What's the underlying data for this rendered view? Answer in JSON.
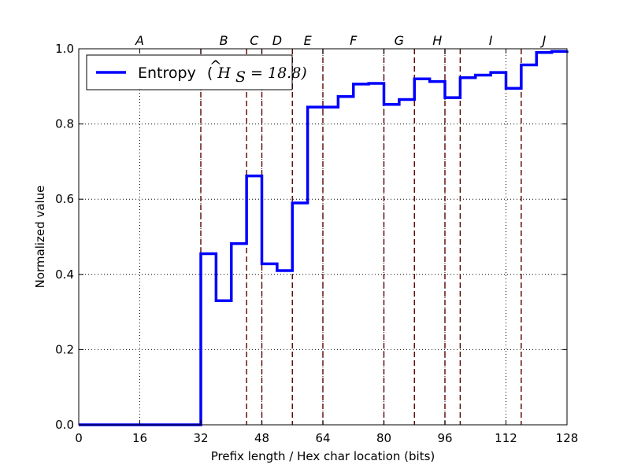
{
  "chart_data": {
    "type": "line",
    "step": true,
    "xlabel": "Prefix length / Hex char location (bits)",
    "ylabel": "Normalized value",
    "xlim": [
      0,
      128
    ],
    "ylim": [
      0,
      1.0
    ],
    "x_ticks": [
      0,
      16,
      32,
      48,
      64,
      80,
      96,
      112,
      128
    ],
    "y_ticks": [
      0.0,
      0.2,
      0.4,
      0.6,
      0.8,
      1.0
    ],
    "y_tick_labels": [
      "0.0",
      "0.2",
      "0.4",
      "0.6",
      "0.8",
      "1.0"
    ],
    "grid": true,
    "legend_position": "top-left",
    "series": [
      {
        "name": "Entropy",
        "legend_math": "(Ĥ_S = 18.8)",
        "legend_prefix": "(",
        "legend_H": "H",
        "legend_hat": "^",
        "legend_sub": "S",
        "legend_eq": " = 18.8)",
        "color": "#0000ff",
        "x": [
          0,
          4,
          8,
          12,
          16,
          20,
          24,
          28,
          32,
          36,
          40,
          44,
          48,
          52,
          56,
          60,
          64,
          68,
          72,
          76,
          80,
          84,
          88,
          92,
          96,
          100,
          104,
          108,
          112,
          116,
          120,
          124,
          128
        ],
        "values": [
          0,
          0,
          0,
          0,
          0,
          0,
          0,
          0,
          0.455,
          0.33,
          0.482,
          0.662,
          0.428,
          0.41,
          0.59,
          0.845,
          0.845,
          0.873,
          0.906,
          0.908,
          0.852,
          0.865,
          0.92,
          0.913,
          0.87,
          0.923,
          0.93,
          0.937,
          0.895,
          0.957,
          0.99,
          0.993,
          0.995
        ]
      }
    ],
    "segments": [
      {
        "label": "A",
        "x": 16
      },
      {
        "label": "B",
        "x": 38
      },
      {
        "label": "C",
        "x": 46
      },
      {
        "label": "D",
        "x": 52
      },
      {
        "label": "E",
        "x": 60
      },
      {
        "label": "F",
        "x": 72
      },
      {
        "label": "G",
        "x": 84
      },
      {
        "label": "H",
        "x": 94
      },
      {
        "label": "I",
        "x": 108
      },
      {
        "label": "J",
        "x": 122
      }
    ],
    "boundaries": [
      32,
      44,
      48,
      56,
      64,
      80,
      88,
      96,
      100,
      116
    ],
    "boundary_color": "#5a0000"
  }
}
